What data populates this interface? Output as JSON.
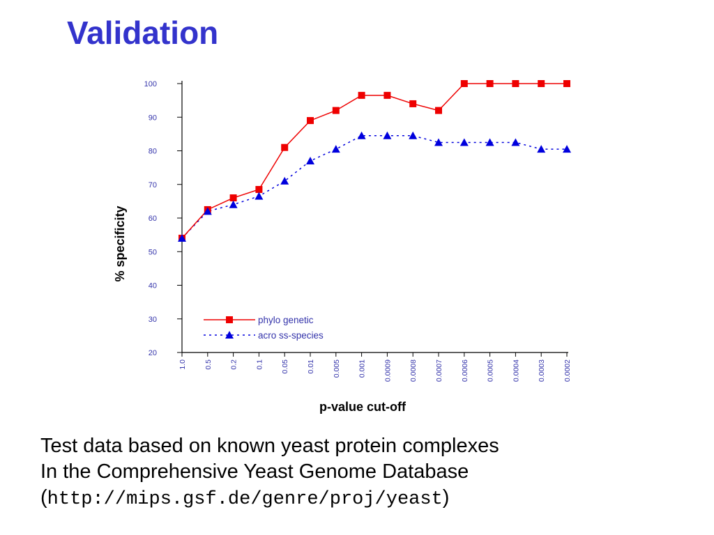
{
  "slide": {
    "title": "Validation",
    "caption_line1": "Test data based on known yeast protein complexes",
    "caption_line2": "In the Comprehensive Yeast Genome Database",
    "caption_url_open": "(",
    "caption_url": "http://mips.gsf.de/genre/proj/yeast",
    "caption_url_close": ")"
  },
  "colors": {
    "title": "#3333cc",
    "axis_text": "#3333aa",
    "phylogenetic": "#ee0000",
    "across_species": "#0000dd"
  },
  "chart_data": {
    "type": "line",
    "title": "",
    "xlabel": "p-value cut-off",
    "ylabel": "% specificity",
    "ylim": [
      20,
      100
    ],
    "yticks": [
      20,
      30,
      40,
      50,
      60,
      70,
      80,
      90,
      100
    ],
    "categories": [
      "1.0",
      "0.5",
      "0.2",
      "0.1",
      "0.05",
      "0.01",
      "0.005",
      "0.001",
      "0.0009",
      "0.0008",
      "0.0007",
      "0.0006",
      "0.0005",
      "0.0004",
      "0.0003",
      "0.0002"
    ],
    "legend_position": "bottom-left",
    "grid": false,
    "series": [
      {
        "name": "phylo genetic",
        "marker": "square",
        "line": "solid",
        "color": "#ee0000",
        "values": [
          54,
          62.5,
          66,
          68.5,
          81,
          89,
          92,
          96.5,
          96.5,
          94,
          92,
          100,
          100,
          100,
          100,
          100
        ]
      },
      {
        "name": "acro ss-species",
        "marker": "triangle",
        "line": "dotted",
        "color": "#0000dd",
        "values": [
          54,
          62,
          64,
          66.5,
          71,
          77,
          80.5,
          84.5,
          84.5,
          84.5,
          82.5,
          82.5,
          82.5,
          82.5,
          80.5,
          80.5
        ]
      }
    ]
  }
}
